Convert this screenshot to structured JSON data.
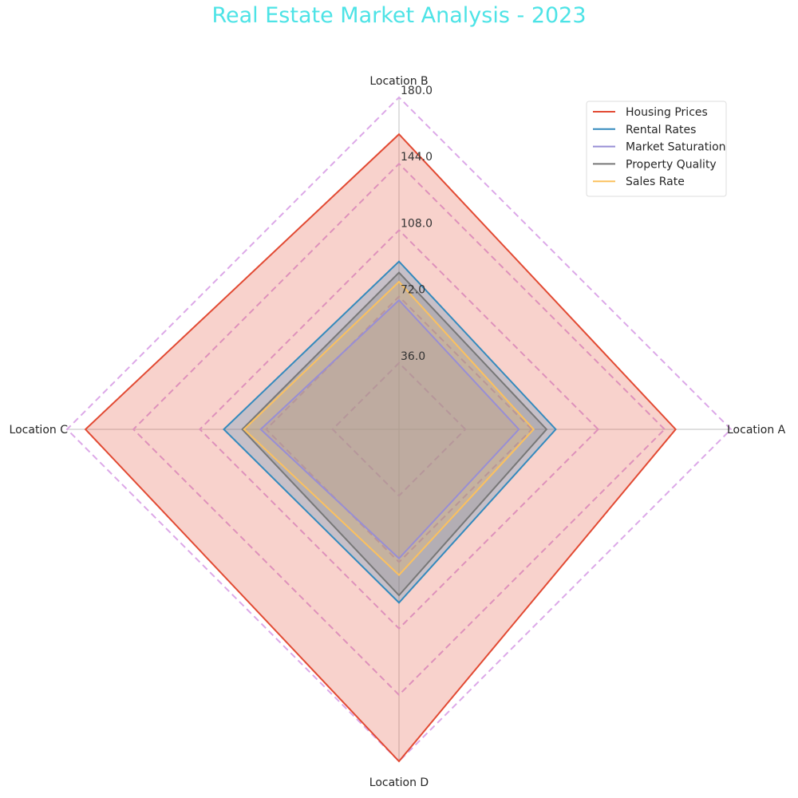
{
  "chart_data": {
    "type": "radar",
    "title": "Real Estate Market Analysis - 2023",
    "title_color": "#4de3e6",
    "axes": [
      "Location A",
      "Location B",
      "Location C",
      "Location D"
    ],
    "rlim": [
      0,
      180
    ],
    "radial_ticks": [
      36,
      72,
      108,
      144,
      180
    ],
    "radial_tick_labels": [
      "36.0",
      "72.0",
      "108.0",
      "144.0",
      "180.0"
    ],
    "grid": true,
    "grid_style": "dashed",
    "grid_color": "#dca8e8",
    "legend_position": "top-right",
    "series": [
      {
        "name": "Housing Prices",
        "color": "#e24a33",
        "fill": true,
        "values": [
          150,
          160,
          170,
          180
        ]
      },
      {
        "name": "Rental Rates",
        "color": "#348abd",
        "fill": true,
        "values": [
          85,
          91,
          95,
          94
        ]
      },
      {
        "name": "Market Saturation",
        "color": "#988ed5",
        "fill": true,
        "values": [
          65,
          70,
          75,
          70
        ]
      },
      {
        "name": "Property Quality",
        "color": "#777777",
        "fill": true,
        "values": [
          80,
          85,
          85,
          90
        ]
      },
      {
        "name": "Sales Rate",
        "color": "#fbc15e",
        "fill": true,
        "values": [
          73,
          80,
          84,
          79
        ]
      }
    ]
  }
}
